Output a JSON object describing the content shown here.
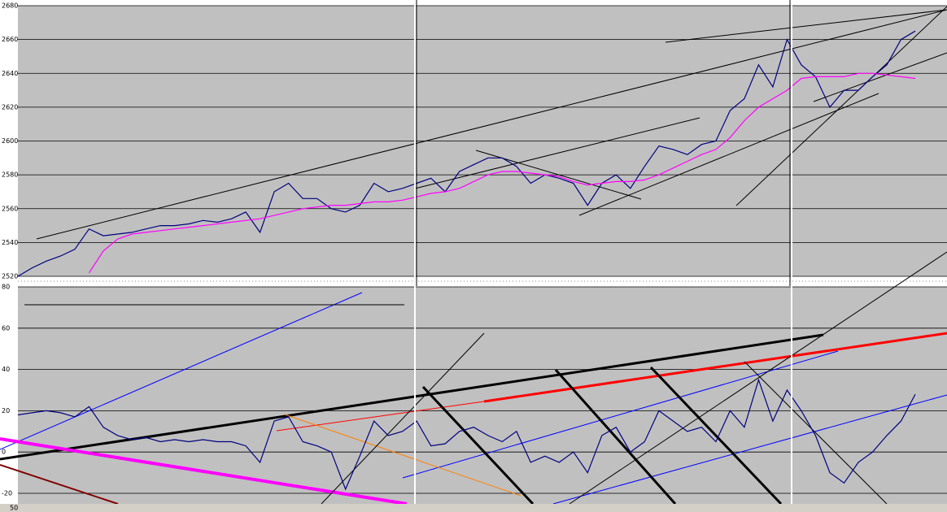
{
  "chart_data": [
    {
      "type": "line",
      "ylim": [
        2520,
        2680
      ],
      "yticks": [
        2520,
        2540,
        2560,
        2580,
        2600,
        2620,
        2640,
        2660,
        2680
      ],
      "grid": true,
      "series": [
        {
          "color": "#000080",
          "values": [
            2520,
            2525,
            2529,
            2532,
            2536,
            2548,
            2544,
            2545,
            2546,
            2548,
            2550,
            2550,
            2551,
            2553,
            2552,
            2554,
            2558,
            2546,
            2570,
            2575,
            2566,
            2566,
            2560,
            2558,
            2562,
            2575,
            2570,
            2572,
            2575,
            2578,
            2570,
            2582,
            2586,
            2590,
            2590,
            2585,
            2575,
            2580,
            2578,
            2575,
            2562,
            2575,
            2580,
            2572,
            2585,
            2597,
            2595,
            2592,
            2598,
            2600,
            2618,
            2625,
            2645,
            2632,
            2660,
            2645,
            2638,
            2620,
            2630,
            2630,
            2638,
            2645,
            2660,
            2665
          ]
        },
        {
          "color": "#ff00ff",
          "values": [
            null,
            null,
            null,
            null,
            null,
            2522,
            2535,
            2542,
            2545,
            2546,
            2547,
            2548,
            2549,
            2550,
            2551,
            2552,
            2553,
            2554,
            2556,
            2558,
            2560,
            2561,
            2562,
            2562,
            2563,
            2564,
            2564,
            2565,
            2567,
            2569,
            2570,
            2572,
            2576,
            2580,
            2582,
            2582,
            2581,
            2580,
            2579,
            2576,
            2574,
            2575,
            2576,
            2576,
            2577,
            2580,
            2584,
            2588,
            2592,
            2595,
            2602,
            2612,
            2620,
            2625,
            2630,
            2637,
            2638,
            2638,
            2638,
            2640,
            2640,
            2639,
            2638,
            2637
          ]
        }
      ]
    },
    {
      "type": "line",
      "ylim": [
        -20,
        80
      ],
      "yticks": [
        -20,
        0,
        20,
        40,
        60,
        80
      ],
      "grid": true,
      "series": [
        {
          "color": "#000080",
          "values": [
            18,
            19,
            20,
            19,
            17,
            22,
            12,
            8,
            6,
            7,
            5,
            6,
            5,
            6,
            5,
            5,
            3,
            -5,
            15,
            17,
            5,
            3,
            0,
            -18,
            -2,
            15,
            8,
            10,
            15,
            3,
            4,
            10,
            12,
            8,
            5,
            10,
            -5,
            -2,
            -5,
            0,
            -10,
            8,
            12,
            0,
            5,
            20,
            15,
            10,
            12,
            5,
            20,
            12,
            35,
            15,
            30,
            20,
            8,
            -10,
            -15,
            -5,
            0,
            8,
            15,
            28
          ]
        }
      ]
    }
  ],
  "status_bar": {
    "zoom": "50"
  }
}
